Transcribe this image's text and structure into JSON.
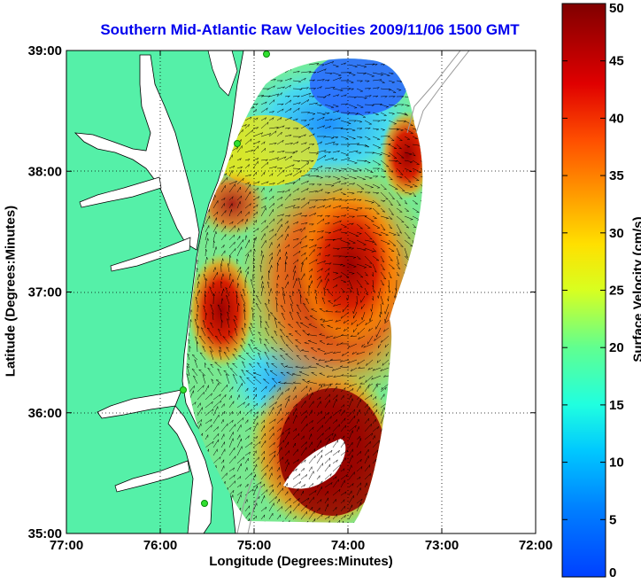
{
  "title": "Southern Mid-Atlantic Raw Velocities 2009/11/06 1500 GMT",
  "map": {
    "xlabel": "Longitude (Degrees:Minutes)",
    "ylabel": "Latitude (Degrees:Minutes)",
    "x_ticks": [
      "77:00",
      "76:00",
      "75:00",
      "74:00",
      "73:00",
      "72:00"
    ],
    "y_ticks": [
      "39:00",
      "38:00",
      "37:00",
      "36:00",
      "35:00"
    ],
    "grid": "dotted",
    "land_color": "#55f0a8",
    "water_color": "#ffffff"
  },
  "colorbar": {
    "label": "Surface Velocity (cm/s)",
    "ticks": [
      "0",
      "5",
      "10",
      "15",
      "20",
      "25",
      "30",
      "35",
      "40",
      "45",
      "50"
    ],
    "range": [
      0,
      50
    ],
    "colormap": "jet"
  }
}
